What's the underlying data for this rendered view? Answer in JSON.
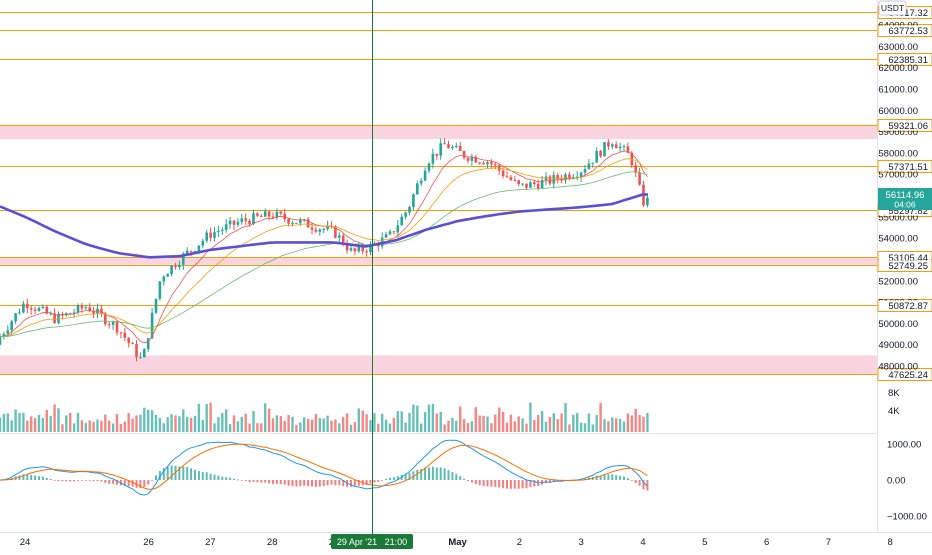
{
  "currency_badge": "USDT",
  "price_axis": {
    "ticks": [
      "64000.00",
      "63000.00",
      "62000.00",
      "61000.00",
      "60000.00",
      "59000.00",
      "58000.00",
      "57000.00",
      "56000.00",
      "55000.00",
      "54000.00",
      "53000.00",
      "52000.00",
      "51000.00",
      "50000.00",
      "49000.00",
      "48000.00"
    ],
    "level_labels": [
      "64617.32",
      "63772.53",
      "62385.31",
      "59321.06",
      "57371.51",
      "55297.82",
      "53105.44",
      "52749.25",
      "50872.87",
      "47625.24"
    ],
    "current_price": "56114.96",
    "countdown": "04:06"
  },
  "volume_axis": {
    "ticks": [
      "8K",
      "4K"
    ]
  },
  "macd_axis": {
    "ticks": [
      "1000.00",
      "0.00",
      "−1000.00"
    ]
  },
  "time_axis": {
    "labels": [
      "24",
      "26",
      "27",
      "28",
      "29",
      "May",
      "2",
      "3",
      "4",
      "5",
      "6",
      "7",
      "8"
    ],
    "crosshair_label": "29 Apr '21   21:00"
  },
  "colors": {
    "level_line": "#f59e0b",
    "zone_fill": "#f8c7d6",
    "up": "#26a69a",
    "down": "#ef5350",
    "ma200": "#5b4fd6",
    "crosshair": "#1b7a3a",
    "macd_line": "#2196f3",
    "signal_line": "#ff6d00"
  },
  "chart_data": {
    "type": "line",
    "symbol_quote": "USDT",
    "ylim": [
      47400,
      64800
    ],
    "current_price": 56114.96,
    "horizontal_levels": [
      64617.32,
      63772.53,
      62385.31,
      59321.06,
      57371.51,
      55297.82,
      53105.44,
      52749.25,
      50872.87,
      47625.24
    ],
    "zones": [
      [
        58650,
        59321.06
      ],
      [
        52749.25,
        53105.44
      ],
      [
        47625.24,
        48500
      ]
    ],
    "price_path": {
      "x": [
        23.5,
        24.0,
        24.5,
        25.0,
        25.5,
        25.9,
        26.0,
        26.2,
        26.5,
        27.0,
        27.5,
        28.0,
        28.5,
        29.0,
        29.3,
        29.6,
        29.9,
        30.2,
        30.5,
        30.8,
        31.1,
        31.5,
        32.0,
        32.5,
        33.0,
        33.5,
        33.8,
        34.0,
        34.3,
        34.5
      ],
      "y": [
        49000,
        51000,
        50200,
        50800,
        49800,
        48200,
        49600,
        52200,
        53000,
        54200,
        54800,
        55100,
        54700,
        54300,
        53300,
        53600,
        54100,
        55400,
        57600,
        58400,
        57900,
        57600,
        56400,
        56700,
        57200,
        58600,
        57800,
        55700,
        55900,
        56115
      ]
    },
    "ma200": {
      "x": [
        23.5,
        24.0,
        24.5,
        25.0,
        25.5,
        26.0,
        26.5,
        27.0,
        28.0,
        29.0,
        29.5,
        30.0,
        30.5,
        31.0,
        31.5,
        32.0,
        32.5,
        33.0,
        33.5,
        34.0,
        34.5
      ],
      "y": [
        55600,
        55000,
        54300,
        53700,
        53300,
        53100,
        53150,
        53450,
        53800,
        53800,
        53600,
        53900,
        54400,
        54800,
        55050,
        55250,
        55350,
        55450,
        55600,
        56050,
        56050
      ]
    },
    "volume_ylim": [
      0,
      9000
    ],
    "macd_ylim": [
      -1300,
      1300
    ]
  }
}
